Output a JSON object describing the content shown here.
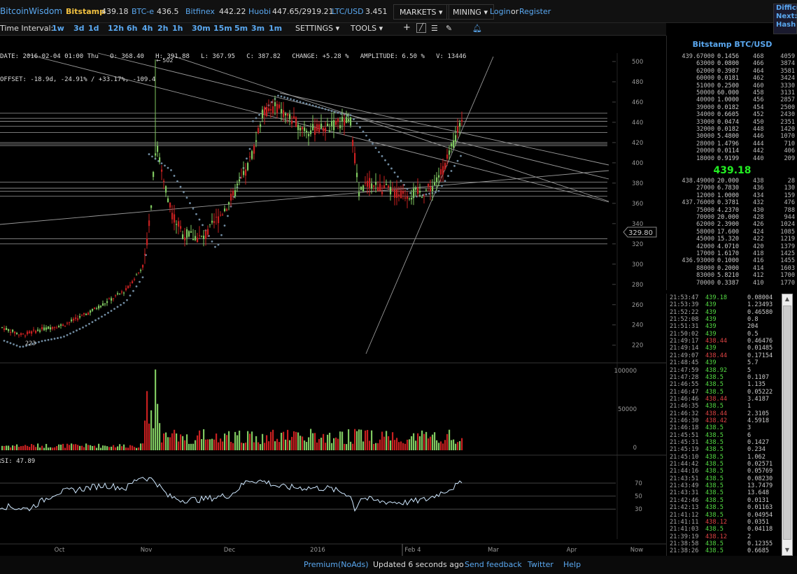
{
  "topbar": {
    "brand": "BitcoinWisdom",
    "exchanges": [
      {
        "name": "Bitstamp",
        "price": "439.18"
      },
      {
        "name": "BTC-e",
        "price": "436.5"
      },
      {
        "name": "Bitfinex",
        "price": "442.22"
      },
      {
        "name": "Huobi",
        "price": "447.65/2919.21"
      },
      {
        "name": "LTC/USD",
        "price": "3.451"
      }
    ],
    "markets_label": "MARKETS",
    "mining_label": "MINING",
    "login_label": "Login",
    "or_label": "or",
    "register_label": "Register",
    "right_lines": [
      "Difficu",
      "Next:",
      "Hash"
    ]
  },
  "toolbar": {
    "time_interval_label": "Time Interval:",
    "intervals": [
      "1w",
      "3d",
      "1d",
      "12h",
      "6h",
      "4h",
      "2h",
      "1h",
      "30m",
      "15m",
      "5m",
      "3m",
      "1m"
    ],
    "settings_label": "SETTINGS",
    "tools_label": "TOOLS"
  },
  "chart_info": {
    "line1": "DATE: 2016-02-04 01:00 Thu   O: 368.40   H: 391.88   L: 367.95   C: 387.82   CHANGE: +5.28 %   AMPLITUDE: 6.50 %   V: 13446",
    "line2": "OFFSET: -18.9d, -24.91% / +33.17%, -109.4"
  },
  "chart_data": {
    "type": "candlestick",
    "title": "",
    "y_range": [
      210,
      510
    ],
    "y_ticks": [
      "500",
      "480",
      "460",
      "440",
      "420",
      "400",
      "380",
      "360",
      "340",
      "320",
      "300",
      "280",
      "260",
      "240",
      "220"
    ],
    "x_labels": [
      "Oct",
      "Nov",
      "Dec",
      "2016",
      "Feb 4",
      "Mar",
      "Apr",
      "Now"
    ],
    "current_price_tag": "329.80",
    "high_marker": "← 502",
    "low_marker": "223",
    "sar_colour": "#6f8aa0",
    "volume_ticks": [
      "100000",
      "50000",
      "0"
    ],
    "rsi_label": "RSI: 47.89",
    "rsi_ticks": [
      "70",
      "50",
      "30"
    ],
    "up_colour": "#7fc860",
    "down_colour": "#c82020"
  },
  "orderbook": {
    "title": "Bitstamp BTC/USD",
    "last_price": "439.18",
    "asks": [
      [
        "439.67000",
        "0.1456",
        "468",
        "4059"
      ],
      [
        "63000",
        "0.0800",
        "466",
        "3874"
      ],
      [
        "62000",
        "0.3987",
        "464",
        "3581"
      ],
      [
        "60000",
        "0.0181",
        "462",
        "3424"
      ],
      [
        "51000",
        "0.2500",
        "460",
        "3330"
      ],
      [
        "50000",
        "60.000",
        "458",
        "3131"
      ],
      [
        "40000",
        "1.0000",
        "456",
        "2857"
      ],
      [
        "39000",
        "0.0182",
        "454",
        "2500"
      ],
      [
        "34000",
        "0.6605",
        "452",
        "2430"
      ],
      [
        "33000",
        "0.0474",
        "450",
        "2351"
      ],
      [
        "32000",
        "0.0182",
        "448",
        "1420"
      ],
      [
        "30000",
        "5.4800",
        "446",
        "1070"
      ],
      [
        "28000",
        "1.4796",
        "444",
        "710"
      ],
      [
        "20000",
        "0.0114",
        "442",
        "406"
      ],
      [
        "18000",
        "0.9199",
        "440",
        "209"
      ]
    ],
    "bids": [
      [
        "438.49000",
        "20.000",
        "438",
        "28"
      ],
      [
        "27000",
        "6.7830",
        "436",
        "130"
      ],
      [
        "12000",
        "1.0000",
        "434",
        "159"
      ],
      [
        "437.76000",
        "0.3781",
        "432",
        "476"
      ],
      [
        "75000",
        "4.2370",
        "430",
        "788"
      ],
      [
        "70000",
        "20.000",
        "428",
        "944"
      ],
      [
        "62000",
        "2.3900",
        "426",
        "1024"
      ],
      [
        "58000",
        "17.600",
        "424",
        "1085"
      ],
      [
        "45000",
        "15.320",
        "422",
        "1219"
      ],
      [
        "42000",
        "4.0710",
        "420",
        "1379"
      ],
      [
        "17000",
        "1.6170",
        "418",
        "1425"
      ],
      [
        "436.93000",
        "0.1000",
        "416",
        "1455"
      ],
      [
        "88000",
        "0.2000",
        "414",
        "1603"
      ],
      [
        "83000",
        "5.8210",
        "412",
        "1700"
      ],
      [
        "70000",
        "0.3387",
        "410",
        "1770"
      ]
    ]
  },
  "trades": [
    [
      "21:53:47",
      "439.18",
      "0.08004",
      "up"
    ],
    [
      "21:53:39",
      "439",
      "1.23493",
      "up"
    ],
    [
      "21:52:22",
      "439",
      "0.46580",
      "up"
    ],
    [
      "21:52:08",
      "439",
      "0.8",
      "up"
    ],
    [
      "21:51:31",
      "439",
      "204",
      "up"
    ],
    [
      "21:50:02",
      "439",
      "0.5",
      "up"
    ],
    [
      "21:49:17",
      "438.44",
      "0.46476",
      "down"
    ],
    [
      "21:49:14",
      "439",
      "0.01485",
      "up"
    ],
    [
      "21:49:07",
      "438.44",
      "0.17154",
      "down"
    ],
    [
      "21:48:45",
      "439",
      "5.7",
      "up"
    ],
    [
      "21:47:59",
      "438.92",
      "5",
      "up"
    ],
    [
      "21:47:28",
      "438.5",
      "0.1107",
      "up"
    ],
    [
      "21:46:55",
      "438.5",
      "1.135",
      "up"
    ],
    [
      "21:46:47",
      "438.5",
      "0.05222",
      "up"
    ],
    [
      "21:46:46",
      "438.44",
      "3.4187",
      "down"
    ],
    [
      "21:46:35",
      "438.5",
      "1",
      "up"
    ],
    [
      "21:46:32",
      "438.44",
      "2.3105",
      "down"
    ],
    [
      "21:46:30",
      "438.42",
      "4.5918",
      "down"
    ],
    [
      "21:46:18",
      "438.5",
      "3",
      "up"
    ],
    [
      "21:45:51",
      "438.5",
      "6",
      "up"
    ],
    [
      "21:45:31",
      "438.5",
      "0.1427",
      "up"
    ],
    [
      "21:45:19",
      "438.5",
      "0.234",
      "up"
    ],
    [
      "21:45:10",
      "438.5",
      "1.062",
      "up"
    ],
    [
      "21:44:42",
      "438.5",
      "0.02571",
      "up"
    ],
    [
      "21:44:16",
      "438.5",
      "0.05769",
      "up"
    ],
    [
      "21:43:51",
      "438.5",
      "0.08230",
      "up"
    ],
    [
      "21:43:49",
      "438.5",
      "13.7479",
      "up"
    ],
    [
      "21:43:31",
      "438.5",
      "13.648",
      "up"
    ],
    [
      "21:42:46",
      "438.5",
      "0.0131",
      "up"
    ],
    [
      "21:42:13",
      "438.5",
      "0.01163",
      "up"
    ],
    [
      "21:41:12",
      "438.5",
      "0.04954",
      "up"
    ],
    [
      "21:41:11",
      "438.12",
      "0.0351",
      "down"
    ],
    [
      "21:41:03",
      "438.5",
      "0.04118",
      "up"
    ],
    [
      "21:39:19",
      "438.12",
      "2",
      "down"
    ],
    [
      "21:38:58",
      "438.5",
      "0.12355",
      "up"
    ],
    [
      "21:38:26",
      "438.5",
      "0.6685",
      "up"
    ]
  ],
  "footer": {
    "premium": "Premium(NoAds)",
    "updated": "Updated 6 seconds ago",
    "feedback": "Send feedback",
    "twitter": "Twitter",
    "help": "Help"
  }
}
